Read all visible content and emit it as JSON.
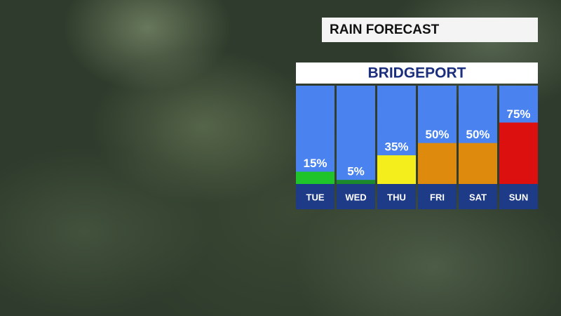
{
  "chart_data": {
    "type": "bar",
    "title": "RAIN FORECAST",
    "subtitle": "BRIDGEPORT",
    "categories": [
      "TUE",
      "WED",
      "THU",
      "FRI",
      "SAT",
      "SUN"
    ],
    "values": [
      15,
      5,
      35,
      50,
      50,
      75
    ],
    "value_labels": [
      "15%",
      "5%",
      "35%",
      "50%",
      "50%",
      "75%"
    ],
    "colors": [
      "#1fc42a",
      "#1c8a2c",
      "#f4ef1c",
      "#de8a0c",
      "#de8a0c",
      "#dc110f"
    ],
    "ylim": [
      0,
      120
    ]
  }
}
